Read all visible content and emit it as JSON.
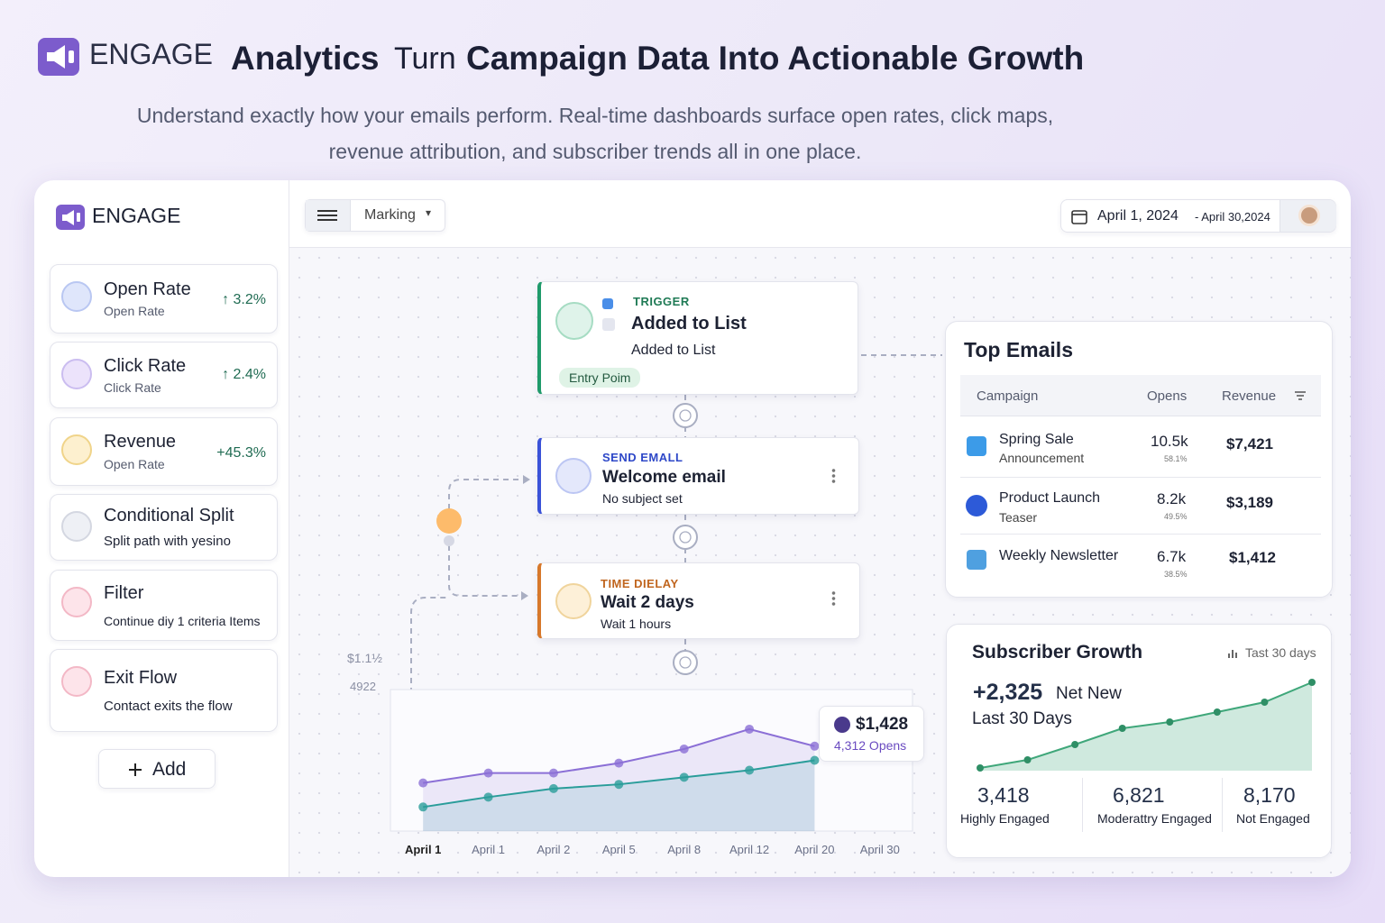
{
  "header": {
    "brand": "ENGAGE",
    "title_bold": "Analytics",
    "title_light": "Turn",
    "title_rest": "Campaign Data Into Actionable Growth",
    "subtitle": "Understand exactly how your emails perform. Real-time dashboards surface open rates, click maps, revenue attribution, and subscriber trends all in one place."
  },
  "sidebar": {
    "brand": "ENGAGE",
    "metrics": [
      {
        "title": "Open Rate",
        "subtitle": "Open Rate",
        "change": "↑ 3.2%"
      },
      {
        "title": "Click Rate",
        "subtitle": "Click Rate",
        "change": "↑ 2.4%"
      },
      {
        "title": "Revenue",
        "subtitle": "Open Rate",
        "change": "+45.3%"
      }
    ],
    "nodes": [
      {
        "title": "Conditional Split",
        "subtitle": "Split path with yesino"
      },
      {
        "title": "Filter",
        "subtitle": "Continue diy 1 criteria Items"
      },
      {
        "title": "Exit Flow",
        "subtitle": "Contact exits the flow"
      }
    ],
    "add_button": "Add"
  },
  "toolbar": {
    "menu": "Marking",
    "date_start": "April 1, 2024",
    "date_end": "- April 30,2024"
  },
  "flow": {
    "trigger": {
      "label": "TRIGGER",
      "title": "Added to List",
      "subtitle": "Added to List",
      "badge": "Entry Poim"
    },
    "send": {
      "label": "SEND EMALL",
      "title": "Welcome email",
      "subtitle": "No subject set"
    },
    "delay": {
      "label": "TIME DIELAY",
      "title": "Wait 2 days",
      "subtitle": "Wait 1 hours"
    }
  },
  "flow_chart": {
    "type": "line",
    "y_labels": [
      "$1.1½",
      "4922"
    ],
    "categories": [
      "April 1",
      "April 1",
      "April 2",
      "April 5",
      "April 8",
      "April 12",
      "April 20",
      "April 30"
    ],
    "ylim": [
      0,
      100
    ],
    "series": [
      {
        "color": "#8b6fd6",
        "values": [
          34,
          41,
          41,
          48,
          58,
          72,
          60,
          null
        ]
      },
      {
        "color": "#2a9d9a",
        "values": [
          17,
          24,
          30,
          33,
          38,
          43,
          50,
          null
        ]
      }
    ],
    "tooltip": {
      "value": "$1,428",
      "label": "4,312 Opens"
    }
  },
  "top_emails": {
    "title": "Top Emails",
    "columns": [
      "Campaign",
      "Opens",
      "Revenue"
    ],
    "rows": [
      {
        "name": "Spring Sale",
        "detail": "Announcement",
        "opens": "10.5k",
        "rate": "58.1%",
        "revenue": "$7,421"
      },
      {
        "name": "Product Launch",
        "detail": "Teaser",
        "opens": "8.2k",
        "rate": "49.5%",
        "revenue": "$3,189"
      },
      {
        "name": "Weekly Newsletter",
        "opens": "6.7k",
        "rate": "38.5%",
        "revenue": "$1,412"
      }
    ]
  },
  "subscriber_growth": {
    "type": "area",
    "title": "Subscriber Growth",
    "period": "Tast 30 days",
    "headline": "+2,325",
    "headline_label": "Net New",
    "headline_period": "Last 30 Days",
    "ylim": [
      0,
      100
    ],
    "color": "#3fa77a",
    "values": [
      3,
      12,
      29,
      47,
      54,
      65,
      76,
      98
    ],
    "stats": [
      {
        "value": "3,418",
        "label": "Highly Engaged"
      },
      {
        "value": "6,821",
        "label": "Moderattry Engaged"
      },
      {
        "value": "8,170",
        "label": "Not Engaged"
      }
    ]
  }
}
